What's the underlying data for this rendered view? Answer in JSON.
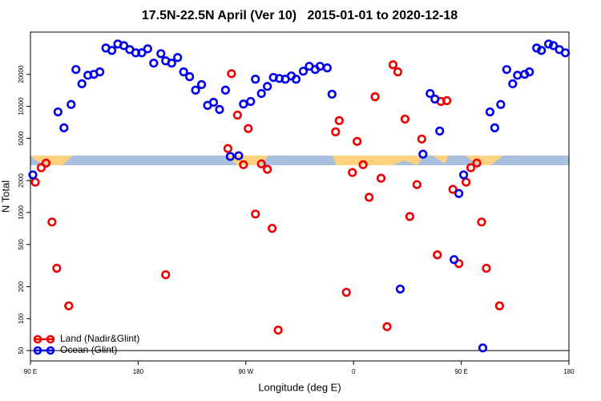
{
  "chart_data": {
    "type": "scatter",
    "title": "17.5N-22.5N April (Ver 10)   2015-01-01 to 2020-12-18",
    "xlabel": "Longitude (deg E)",
    "ylabel": "N Total",
    "xlim": [
      90,
      540
    ],
    "ylim": [
      40,
      50000
    ],
    "log_y": true,
    "hline": 50,
    "legend": "lower left",
    "xticks": [
      {
        "value": 90,
        "label": "90 E"
      },
      {
        "value": 180,
        "label": "180"
      },
      {
        "value": 270,
        "label": "90 W"
      },
      {
        "value": 360,
        "label": "0"
      },
      {
        "value": 450,
        "label": "90 E"
      },
      {
        "value": 540,
        "label": "180"
      }
    ],
    "yticks": [
      50,
      100,
      200,
      500,
      1000,
      2000,
      5000,
      10000,
      20000
    ],
    "series": [
      {
        "name": "Land (Nadir&Glint)",
        "color": "#ee0000",
        "x": [
          94,
          99,
          103,
          108,
          112,
          122,
          203,
          255,
          258,
          263,
          268,
          272,
          278,
          283,
          288,
          292,
          297,
          345,
          348,
          354,
          359,
          363,
          368,
          373,
          378,
          383,
          388,
          393,
          397,
          403,
          407,
          413,
          417,
          430,
          433,
          438,
          443,
          448,
          454,
          458,
          463,
          467,
          471,
          482
        ],
        "values": [
          1930,
          2640,
          2920,
          813,
          298,
          132,
          259,
          4000,
          20300,
          8260,
          2820,
          6170,
          966,
          2870,
          2550,
          708,
          78,
          5750,
          7330,
          177,
          2380,
          4670,
          2820,
          1390,
          12300,
          2100,
          84,
          24600,
          21100,
          7580,
          916,
          1830,
          4920,
          399,
          11100,
          11300,
          1650,
          330,
          1930,
          2640,
          2920,
          813,
          298,
          132
        ]
      },
      {
        "name": "Ocean (Glint)",
        "color": "#0000ee",
        "x": [
          92,
          113,
          118,
          124,
          128,
          133,
          138,
          143,
          148,
          153,
          158,
          163,
          168,
          173,
          178,
          183,
          188,
          193,
          199,
          203,
          208,
          213,
          218,
          223,
          228,
          233,
          238,
          243,
          248,
          253,
          257,
          264,
          268,
          274,
          278,
          283,
          288,
          293,
          298,
          303,
          308,
          312,
          318,
          323,
          328,
          332,
          338,
          342,
          399,
          418,
          424,
          428,
          432,
          444,
          448,
          452,
          474,
          478,
          483,
          488,
          493,
          497,
          503,
          507,
          513,
          517,
          523,
          527,
          532,
          537,
          468
        ],
        "values": [
          2260,
          8850,
          6270,
          10400,
          22200,
          16300,
          19600,
          20000,
          21100,
          35400,
          33600,
          38600,
          37300,
          34200,
          31900,
          31900,
          34800,
          25500,
          31300,
          26800,
          25500,
          28800,
          21100,
          19000,
          14200,
          16000,
          10200,
          10900,
          9330,
          14200,
          3370,
          3420,
          10500,
          11100,
          18000,
          13200,
          15400,
          18700,
          18300,
          18000,
          19300,
          18000,
          21400,
          23800,
          22200,
          23800,
          23000,
          13000,
          190,
          3540,
          13200,
          11700,
          5850,
          360,
          1510,
          2260,
          8850,
          6270,
          10400,
          22200,
          16300,
          19600,
          20000,
          21100,
          35400,
          33600,
          38600,
          37300,
          34200,
          31900,
          53
        ]
      }
    ]
  }
}
